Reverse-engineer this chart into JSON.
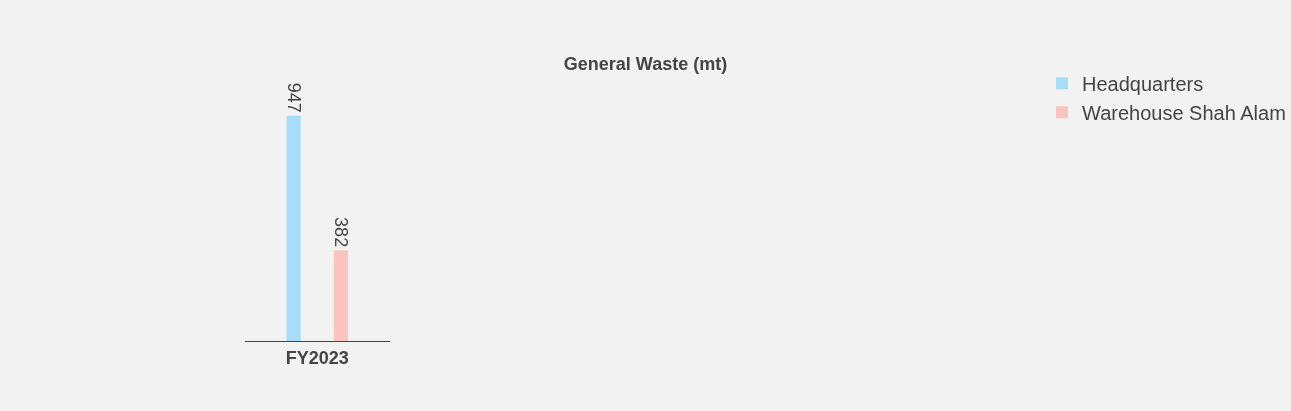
{
  "chart_data": {
    "type": "bar",
    "title": "General Waste (mt)",
    "categories": [
      "FY2023"
    ],
    "series": [
      {
        "name": "Headquarters",
        "color": "#a8dcf7",
        "values": [
          947
        ]
      },
      {
        "name": "Warehouse Shah Alam",
        "color": "#f9c4c0",
        "values": [
          382
        ]
      }
    ],
    "data_labels": true,
    "legend": "top right",
    "grid": false
  }
}
